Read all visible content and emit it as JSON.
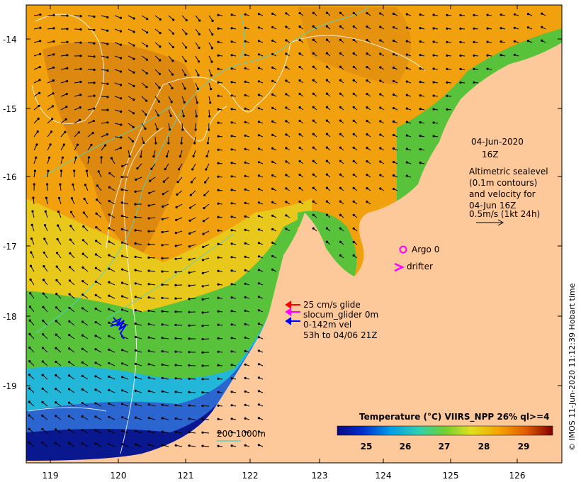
{
  "map": {
    "lon_ticks": [
      "119",
      "120",
      "121",
      "122",
      "123",
      "124",
      "125",
      "126"
    ],
    "lat_ticks": [
      "-14",
      "-15",
      "-16",
      "-17",
      "-18",
      "-19"
    ],
    "date_label": "04-Jun-2020",
    "time_label": "16Z",
    "sealevel_text": [
      "Altimetric sealevel",
      "(0.1m contours)",
      "and velocity for",
      "04-Jun 16Z",
      "0.5m/s (1kt 24h)"
    ],
    "argo_label": "Argo 0",
    "drifter_label": "drifter",
    "glider_text": [
      "25 cm/s glide",
      "slocum_glider 0m",
      "0-142m vel",
      "53h to 04/06 21Z"
    ],
    "depth_text": "200  1000m",
    "colorbar_title": "Temperature (°C) VIIRS_NPP 26% ql>=4",
    "colorbar_ticks": [
      "25",
      "26",
      "27",
      "28",
      "29"
    ],
    "credit": "© IMOS 11-Jun-2020 11:12:39 Hobart time"
  },
  "colors": {
    "land": "#fdc89a",
    "sst_warm": "#f2a10e",
    "sst_warm_dark": "#d47d10",
    "sst_mid": "#e8c81a",
    "sst_green": "#58c23a",
    "sst_cyan": "#22b6d8",
    "sst_blue": "#2b66d0",
    "sst_navy": "#0a1890",
    "contour": "#ffffff",
    "depth_contour": "#4fd6c8",
    "argo": "#ff00ff",
    "glider_red": "#ff0000",
    "glider_magenta": "#ff00ff",
    "glider_blue": "#0000ff"
  }
}
